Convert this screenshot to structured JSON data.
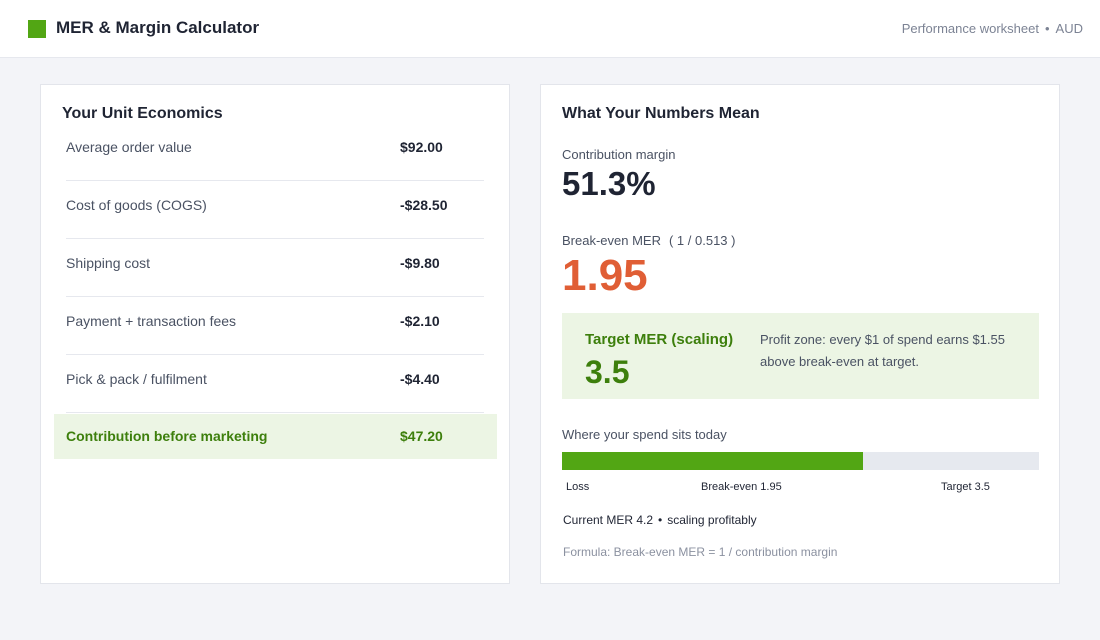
{
  "header": {
    "title": "MER & Margin Calculator",
    "subtitle": "Performance worksheet",
    "separator": "•",
    "currency": "AUD",
    "logo_color": "#52a614"
  },
  "unit_economics": {
    "title": "Your Unit Economics",
    "rows": [
      {
        "label": "Average order value",
        "value": "$92.00"
      },
      {
        "label": "Cost of goods (COGS)",
        "value": "-$28.50"
      },
      {
        "label": "Shipping cost",
        "value": "-$9.80"
      },
      {
        "label": "Payment + transaction fees",
        "value": "-$2.10"
      },
      {
        "label": "Pick & pack / fulfilment",
        "value": "-$4.40"
      }
    ],
    "total": {
      "label": "Contribution before marketing",
      "value": "$47.20"
    }
  },
  "numbers": {
    "title": "What Your Numbers Mean",
    "contribution_margin_label": "Contribution margin",
    "contribution_margin_value": "51.3%",
    "break_even_label": "Break-even MER",
    "break_even_formula": "( 1 / 0.513 )",
    "break_even_value": "1.95",
    "target_label": "Target MER (scaling)",
    "target_value": "3.5",
    "target_note": "Profit zone: every $1 of spend earns $1.55 above break-even at target.",
    "spend_label": "Where your spend sits today",
    "spend_progress": 0.63,
    "ticks": {
      "loss": "Loss",
      "break_even": "Break-even 1.95",
      "target": "Target 3.5"
    },
    "current_mer": "Current MER 4.2",
    "current_sep": "•",
    "current_status": "scaling profitably",
    "formula_note": "Formula: Break-even MER = 1 / contribution margin",
    "colors": {
      "accent_green": "#52a614",
      "dark_green": "#3d7f0c",
      "break_even_orange": "#e05e35"
    }
  }
}
